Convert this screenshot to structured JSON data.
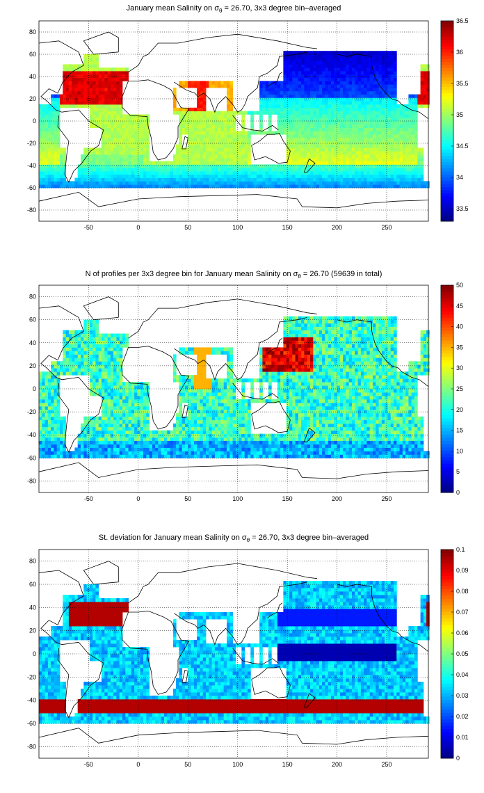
{
  "panels": [
    {
      "id": "mean",
      "title_pre": "January mean Salinity on ",
      "title_sigma": "σ",
      "title_sub": "θ",
      "title_post": " = 26.70, 3x3 degree bin–averaged",
      "colorbar_ticks": [
        "36.5",
        "36",
        "35.5",
        "35",
        "34.5",
        "34",
        "33.5"
      ],
      "colorbar_range": [
        33.3,
        36.5
      ]
    },
    {
      "id": "count",
      "title_pre": "N of profiles per 3x3 degree bin for January mean Salinity on ",
      "title_sigma": "σ",
      "title_sub": "θ",
      "title_post": " = 26.70 (59639 in total)",
      "colorbar_ticks": [
        "50",
        "45",
        "40",
        "35",
        "30",
        "25",
        "20",
        "15",
        "10",
        "5",
        "0"
      ],
      "colorbar_range": [
        0,
        50
      ]
    },
    {
      "id": "std",
      "title_pre": "St. deviation for January mean Salinity on ",
      "title_sigma": "σ",
      "title_sub": "θ",
      "title_post": " = 26.70, 3x3 degree bin–averaged",
      "colorbar_ticks": [
        "0.1",
        "0.09",
        "0.08",
        "0.07",
        "0.06",
        "0.05",
        "0.04",
        "0.03",
        "0.02",
        "0.01",
        "0"
      ],
      "colorbar_range": [
        0,
        0.1
      ]
    }
  ],
  "axes": {
    "x_ticks": [
      "-50",
      "0",
      "50",
      "100",
      "150",
      "200",
      "250"
    ],
    "y_ticks": [
      "80",
      "60",
      "40",
      "20",
      "0",
      "-20",
      "-40",
      "-60",
      "-80"
    ],
    "x_range": [
      -100,
      292
    ],
    "y_range": [
      -90,
      90
    ]
  },
  "colors": {
    "colormap": "jet",
    "land": "#ffffff",
    "coastline": "#000000",
    "grid": "#000000"
  }
}
